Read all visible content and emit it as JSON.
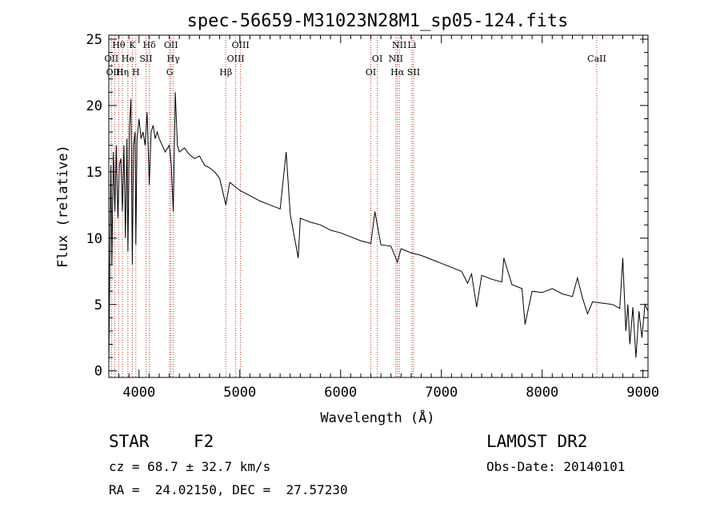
{
  "chart_data": {
    "type": "line",
    "title": "spec-56659-M31023N28M1_sp05-124.fits",
    "xlabel": "Wavelength (Å)",
    "ylabel": "Flux (relative)",
    "xlim": [
      3700,
      9050
    ],
    "ylim": [
      -0.5,
      25.3
    ],
    "xticks": [
      4000,
      5000,
      6000,
      7000,
      8000,
      9000
    ],
    "yticks": [
      0,
      5,
      10,
      15,
      20,
      25
    ],
    "grid": false,
    "series": [
      {
        "line_color": "#000000",
        "x": [
          3700,
          3720,
          3730,
          3745,
          3760,
          3775,
          3790,
          3805,
          3820,
          3835,
          3850,
          3865,
          3880,
          3890,
          3905,
          3920,
          3933,
          3945,
          3960,
          3968,
          3980,
          4000,
          4020,
          4040,
          4060,
          4080,
          4102,
          4120,
          4140,
          4160,
          4180,
          4200,
          4230,
          4260,
          4300,
          4320,
          4340,
          4360,
          4380,
          4400,
          4450,
          4500,
          4550,
          4600,
          4650,
          4700,
          4750,
          4800,
          4861,
          4900,
          4950,
          5000,
          5100,
          5200,
          5300,
          5400,
          5460,
          5500,
          5580,
          5600,
          5700,
          5800,
          5900,
          6000,
          6100,
          6200,
          6300,
          6340,
          6400,
          6500,
          6563,
          6600,
          6700,
          6800,
          6900,
          7000,
          7100,
          7200,
          7260,
          7300,
          7350,
          7400,
          7500,
          7600,
          7620,
          7700,
          7800,
          7830,
          7900,
          8000,
          8100,
          8200,
          8300,
          8350,
          8400,
          8450,
          8500,
          8600,
          8700,
          8770,
          8800,
          8830,
          8850,
          8870,
          8900,
          8930,
          8960,
          8990,
          9020,
          9050
        ],
        "y": [
          0.5,
          15.5,
          8.0,
          16.5,
          12.0,
          17.0,
          11.5,
          15.5,
          16.0,
          12.0,
          17.0,
          10.0,
          17.5,
          9.0,
          18.5,
          20.5,
          8.0,
          17.0,
          18.0,
          9.5,
          17.5,
          19.0,
          17.5,
          18.0,
          17.0,
          19.5,
          14.0,
          18.0,
          18.5,
          17.5,
          18.0,
          17.5,
          17.0,
          16.5,
          17.0,
          15.5,
          12.0,
          21.0,
          17.0,
          16.5,
          16.8,
          16.3,
          16.0,
          16.2,
          15.5,
          15.3,
          15.0,
          14.5,
          12.5,
          14.2,
          13.9,
          13.6,
          13.2,
          12.8,
          12.5,
          12.2,
          16.5,
          11.8,
          8.5,
          11.5,
          11.2,
          11.0,
          10.6,
          10.4,
          10.1,
          9.8,
          9.6,
          12.0,
          9.5,
          9.4,
          8.2,
          9.2,
          8.9,
          8.7,
          8.4,
          8.1,
          7.8,
          7.5,
          6.6,
          7.3,
          4.8,
          7.2,
          6.9,
          6.7,
          8.5,
          6.5,
          6.2,
          3.5,
          6.0,
          5.9,
          6.2,
          5.8,
          5.6,
          7.0,
          5.5,
          4.3,
          5.2,
          5.1,
          5.0,
          4.7,
          8.5,
          3.0,
          5.0,
          2.0,
          4.8,
          1.0,
          4.5,
          2.5,
          5.0,
          4.5
        ]
      }
    ],
    "annotations": [
      {
        "label": "Hθ",
        "x": 3798,
        "row": 1
      },
      {
        "label": "OII",
        "x": 3727,
        "row": 2
      },
      {
        "label": "OIII",
        "x": 3760,
        "row": 3
      },
      {
        "label": "K",
        "x": 3934,
        "row": 1
      },
      {
        "label": "He",
        "x": 3889,
        "row": 2
      },
      {
        "label": "Hη",
        "x": 3835,
        "row": 3
      },
      {
        "label": "Hδ",
        "x": 4102,
        "row": 1
      },
      {
        "label": "SII",
        "x": 4069,
        "row": 2
      },
      {
        "label": "H",
        "x": 3968,
        "row": 3
      },
      {
        "label": "OII",
        "x": 4317,
        "row": 1
      },
      {
        "label": "Hγ",
        "x": 4340,
        "row": 2
      },
      {
        "label": "G",
        "x": 4304,
        "row": 3
      },
      {
        "label": "OIII",
        "x": 5007,
        "row": 1
      },
      {
        "label": "OIII",
        "x": 4959,
        "row": 2
      },
      {
        "label": "Hβ",
        "x": 4861,
        "row": 3
      },
      {
        "label": "OI",
        "x": 6364,
        "row": 2
      },
      {
        "label": "OI",
        "x": 6300,
        "row": 3
      },
      {
        "label": "NII",
        "x": 6583,
        "row": 1
      },
      {
        "label": "NII",
        "x": 6548,
        "row": 2
      },
      {
        "label": "Hα",
        "x": 6563,
        "row": 3
      },
      {
        "label": "Li",
        "x": 6708,
        "row": 1
      },
      {
        "label": "SII",
        "x": 6724,
        "row": 3
      },
      {
        "label": "CaII",
        "x": 8542,
        "row": 2
      }
    ]
  },
  "info": {
    "class": "STAR",
    "subclass": "F2",
    "cz": "cz = 68.7 ± 32.7 km/s",
    "coords": "RA =  24.02150, DEC =  27.57230",
    "survey": "LAMOST DR2",
    "obsdate": "Obs-Date: 20140101"
  }
}
